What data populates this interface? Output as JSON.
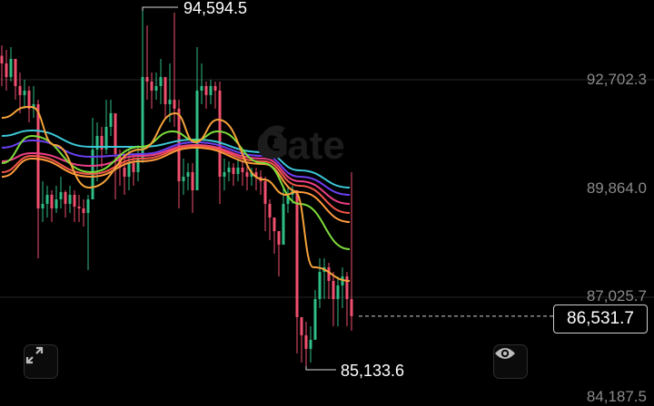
{
  "chart_data": {
    "type": "candlestick",
    "title": "",
    "y_axis": {
      "tick_labels": [
        "92,702.3",
        "89,864.0",
        "87,025.7",
        "84,187.5"
      ],
      "ticks": [
        92702.3,
        89864.0,
        87025.7,
        84187.5
      ],
      "range": [
        84187.5,
        94800
      ],
      "position": "right",
      "grid": true
    },
    "high_marker": {
      "label": "94,594.5",
      "value": 94594.5
    },
    "low_marker": {
      "label": "85,133.6",
      "value": 85133.6
    },
    "last_price": {
      "label": "86,531.7",
      "value": 86531.7
    },
    "colors": {
      "up": "#2fbd85",
      "down": "#f0506e"
    },
    "close": [
      93128,
      92774,
      93247,
      92537,
      92301,
      92419,
      91946,
      92064,
      89344,
      89463,
      89699,
      89344,
      89581,
      89770,
      89463,
      89699,
      89392,
      89344,
      89226,
      89581,
      90882,
      91236,
      90882,
      91473,
      91828,
      90763,
      90409,
      90172,
      90527,
      90290,
      90645,
      92774,
      92655,
      92419,
      92537,
      92774,
      92064,
      92182,
      91946,
      90054,
      90172,
      90290,
      89817,
      92419,
      92537,
      92301,
      92537,
      92419,
      90172,
      90290,
      90409,
      90243,
      90409,
      90290,
      90172,
      90290,
      90172,
      90054,
      89463,
      89108,
      88753,
      88398,
      89463,
      89699,
      89817,
      86506,
      86033,
      85679,
      85915,
      86979,
      87689,
      87807,
      87452,
      86979,
      87334,
      87571,
      86979,
      86531.7
    ],
    "high": [
      93601,
      93483,
      93554,
      93247,
      92892,
      92703,
      92537,
      92537,
      92182,
      90054,
      89936,
      89817,
      89936,
      90172,
      89817,
      89936,
      89817,
      89699,
      89581,
      89699,
      91709,
      91591,
      91473,
      92182,
      92182,
      91473,
      90882,
      90763,
      90882,
      90763,
      91000,
      94594.5,
      94122,
      92892,
      92892,
      93247,
      92655,
      93128,
      94453,
      92182,
      90645,
      90527,
      90527,
      93554,
      93128,
      92655,
      92703,
      92655,
      92655,
      90645,
      90574,
      90527,
      90645,
      90574,
      90456,
      90409,
      90409,
      90338,
      90172,
      89581,
      89108,
      88753,
      89936,
      89936,
      89936,
      89817,
      86506,
      86388,
      86270,
      87216,
      88044,
      88044,
      87925,
      87689,
      87571,
      87807,
      87689,
      90290
    ],
    "low": [
      92537,
      92419,
      92655,
      92182,
      91828,
      91946,
      91591,
      91709,
      88044,
      88990,
      89108,
      88990,
      89226,
      89344,
      89108,
      89226,
      88990,
      88990,
      88871,
      87736,
      89699,
      90054,
      90409,
      90763,
      91236,
      89581,
      89936,
      89699,
      89817,
      89936,
      90054,
      90527,
      92182,
      91946,
      92182,
      92064,
      91709,
      91591,
      91473,
      89344,
      89699,
      89817,
      89226,
      89817,
      92064,
      91946,
      92064,
      91946,
      89463,
      89817,
      90054,
      89936,
      90054,
      89936,
      89817,
      89936,
      89817,
      89699,
      88753,
      88517,
      88162,
      87571,
      88398,
      89226,
      89463,
      85560,
      85324,
      85133.6,
      85324,
      86033,
      86743,
      86979,
      86979,
      86270,
      86270,
      86743,
      86270,
      86152
    ],
    "moving_averages": [
      {
        "color": "#3cc8d8",
        "points": [
          [
            0,
            91236
          ],
          [
            6.6,
            91378
          ],
          [
            19.6,
            90953
          ],
          [
            30.6,
            90953
          ],
          [
            42.6,
            91142
          ],
          [
            57.6,
            90811
          ],
          [
            65.6,
            90338
          ],
          [
            76.6,
            89888
          ]
        ]
      },
      {
        "color": "#6b3ff0",
        "points": [
          [
            0,
            90929
          ],
          [
            6.6,
            91118
          ],
          [
            19.6,
            90693
          ],
          [
            30.6,
            90764
          ],
          [
            42.6,
            91071
          ],
          [
            57.6,
            90716
          ],
          [
            65.6,
            90172
          ],
          [
            76.6,
            89699
          ]
        ]
      },
      {
        "color": "#ec3f86",
        "points": [
          [
            0,
            90574
          ],
          [
            6.6,
            90787
          ],
          [
            19.6,
            90456
          ],
          [
            30.6,
            90716
          ],
          [
            42.6,
            91000
          ],
          [
            57.6,
            90645
          ],
          [
            65.6,
            90054
          ],
          [
            76.6,
            89463
          ]
        ]
      },
      {
        "color": "#f2564a",
        "points": [
          [
            0,
            90290
          ],
          [
            6.6,
            90716
          ],
          [
            19.6,
            90243
          ],
          [
            30.6,
            90645
          ],
          [
            42.6,
            90976
          ],
          [
            57.6,
            90574
          ],
          [
            65.6,
            89936
          ],
          [
            76.6,
            89226
          ]
        ]
      },
      {
        "color": "#ff9a3c",
        "points": [
          [
            0,
            90170
          ],
          [
            6.6,
            90645
          ],
          [
            19.6,
            90172
          ],
          [
            30.6,
            90574
          ],
          [
            42.6,
            90929
          ],
          [
            57.6,
            90503
          ],
          [
            65.6,
            89770
          ],
          [
            76.6,
            88990
          ]
        ]
      },
      {
        "color": "#7ddc3a",
        "points": [
          [
            0,
            90527
          ],
          [
            6.6,
            91236
          ],
          [
            19.6,
            90290
          ],
          [
            30.6,
            90953
          ],
          [
            37.6,
            91354
          ],
          [
            42.6,
            91118
          ],
          [
            47.6,
            91354
          ],
          [
            57.6,
            90527
          ],
          [
            65.6,
            89463
          ],
          [
            76.6,
            88280
          ]
        ]
      },
      {
        "color": "#f5a23a",
        "points": [
          [
            0,
            91709
          ],
          [
            5.6,
            91993
          ],
          [
            6.6,
            91993
          ],
          [
            11.6,
            91000
          ],
          [
            19.2,
            89888
          ],
          [
            30.6,
            90882
          ],
          [
            38.2,
            91827
          ],
          [
            42.6,
            91071
          ],
          [
            47.6,
            91662
          ],
          [
            57.6,
            90101
          ],
          [
            62.6,
            89699
          ],
          [
            64.6,
            89770
          ],
          [
            68.6,
            87808
          ],
          [
            76.6,
            87452
          ]
        ]
      }
    ]
  },
  "watermark": "Gate",
  "controls": {
    "expand_icon": "expand-arrows-icon",
    "eye_icon": "eye-icon"
  }
}
